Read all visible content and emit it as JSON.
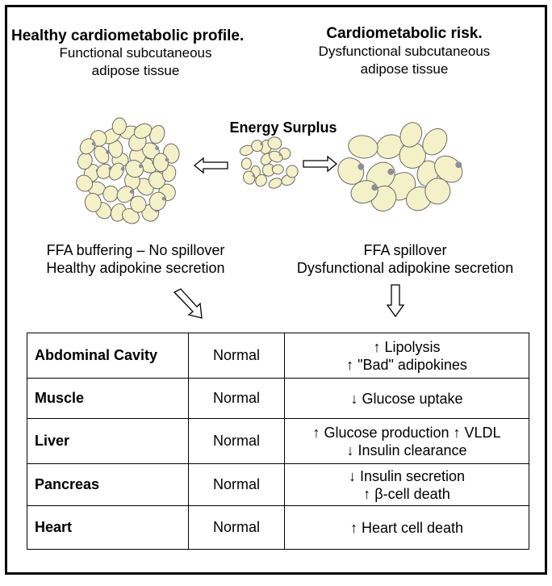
{
  "left_panel": {
    "title": "Healthy cardiometabolic profile.",
    "subtitle_line1": "Functional subcutaneous",
    "subtitle_line2": "adipose tissue",
    "outcome_line1": "FFA buffering – No spillover",
    "outcome_line2": "Healthy adipokine secretion"
  },
  "right_panel": {
    "title": "Cardiometabolic risk.",
    "subtitle_line1": "Dysfunctional subcutaneous",
    "subtitle_line2": "adipose tissue",
    "outcome_line1": "FFA spillover",
    "outcome_line2": "Dysfunctional adipokine secretion"
  },
  "center": {
    "label": "Energy Surplus"
  },
  "table": {
    "rows": [
      {
        "organ": "Abdominal Cavity",
        "healthy": "Normal",
        "risk_line1": "↑ Lipolysis",
        "risk_line2": "↑ \"Bad\" adipokines"
      },
      {
        "organ": "Muscle",
        "healthy": "Normal",
        "risk_line1": "↓ Glucose uptake",
        "risk_line2": ""
      },
      {
        "organ": "Liver",
        "healthy": "Normal",
        "risk_line1": "↑ Glucose production ↑ VLDL",
        "risk_line2": "↓ Insulin clearance"
      },
      {
        "organ": "Pancreas",
        "healthy": "Normal",
        "risk_line1": "↓ Insulin secretion",
        "risk_line2": "↑ β-cell death"
      },
      {
        "organ": "Heart",
        "healthy": "Normal",
        "risk_line1": "↑ Heart cell death",
        "risk_line2": ""
      }
    ]
  },
  "colors": {
    "cell_fill": "#f4f0c8",
    "cell_outline": "#6a6a6a",
    "cell_accent": "#8a8f9a",
    "border": "#000000"
  }
}
